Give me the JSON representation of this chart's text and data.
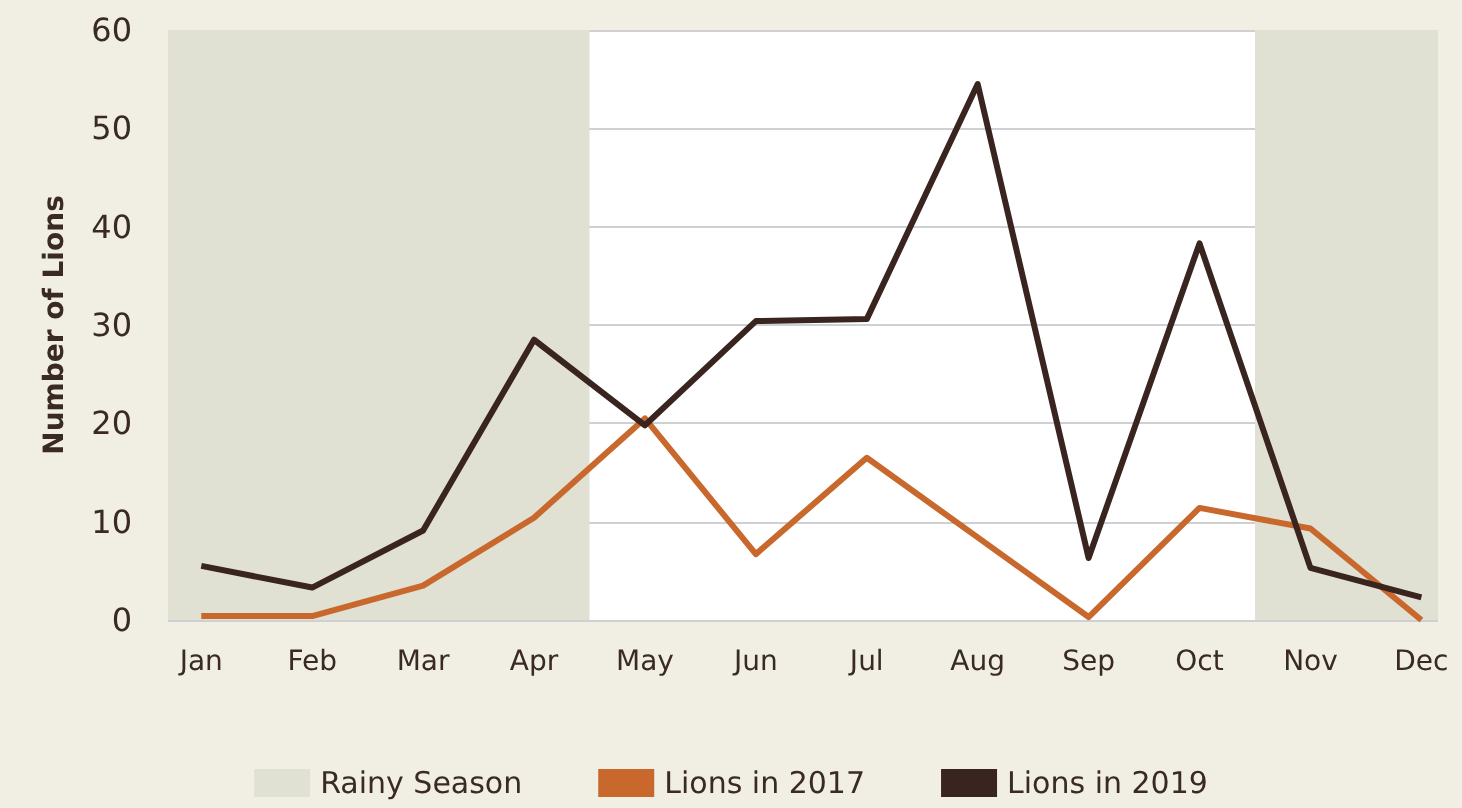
{
  "chart_data": {
    "type": "line",
    "ylabel": "Number of Lions",
    "categories": [
      "Jan",
      "Feb",
      "Mar",
      "Apr",
      "May",
      "Jun",
      "Jul",
      "Aug",
      "Sep",
      "Oct",
      "Nov",
      "Dec"
    ],
    "series": [
      {
        "name": "Lions in 2017",
        "color": "#c8682c",
        "values": [
          0.4,
          0.4,
          3.5,
          10.4,
          20.5,
          6.7,
          16.5,
          8.4,
          0.3,
          11.4,
          9.3,
          0
        ]
      },
      {
        "name": "Lions in 2019",
        "color": "#3a2420",
        "values": [
          5.5,
          3.3,
          9.1,
          28.5,
          19.8,
          30.4,
          30.6,
          54.5,
          6.3,
          38.3,
          5.3,
          2.3
        ]
      }
    ],
    "bands": [
      {
        "axis": "x",
        "from": "Jan",
        "to": "Apr",
        "label": "Rainy Season",
        "color": "#e0e0d3"
      },
      {
        "axis": "x",
        "from": "Nov",
        "to": "Dec",
        "color": "#e0e0d3"
      }
    ],
    "ylim": [
      0,
      60
    ],
    "yticks": [
      0,
      10,
      20,
      30,
      40,
      50,
      60
    ],
    "grid": "y",
    "legend": "bottom",
    "marker": "none",
    "line_style": "solid"
  }
}
